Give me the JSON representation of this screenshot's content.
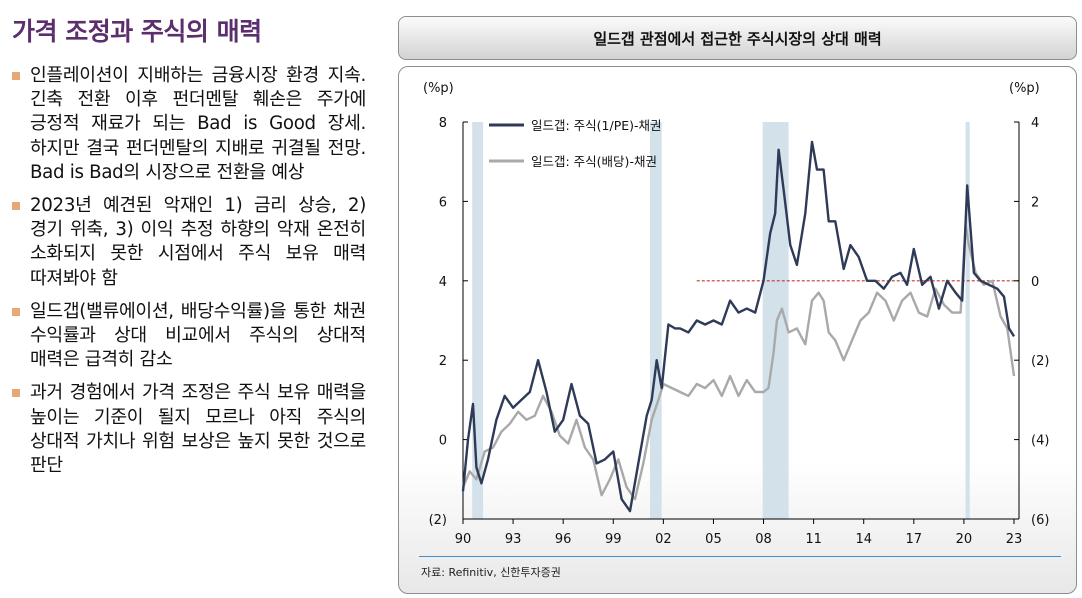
{
  "page": {
    "title": "가격 조정과 주식의 매력",
    "bullets": [
      "인플레이션이 지배하는 금융시장 환경 지속. 긴축 전환 이후 펀더멘탈 훼손은 주가에 긍정적 재료가 되는 Bad is Good 장세. 하지만 결국 펀더멘탈의 지배로 귀결될 전망. Bad is Bad의 시장으로 전환을 예상",
      "2023년 예견된 악재인 1) 금리 상승, 2) 경기 위축, 3) 이익 추정 하향의 악재 온전히 소화되지 못한 시점에서 주식 보유 매력 따져봐야 함",
      "일드갭(밸류에이션, 배당수익률)을 통한 채권 수익률과 상대 비교에서 주식의 상대적 매력은 급격히 감소",
      "과거 경험에서 가격 조정은 주식 보유 매력을 높이는 기준이 될지 모르나 아직 주식의 상대적 가치나 위험 보상은 높지 못한 것으로 판단"
    ],
    "source": "자료: Refinitiv, 신한투자증권"
  },
  "colors": {
    "title": "#5b2e6e",
    "bullet": "#e9a774",
    "series_pe": "#2e3a57",
    "series_div": "#a9a9a9",
    "recession": "#d3e1ea",
    "reference_line": "#c0392b"
  },
  "chart_data": {
    "type": "line",
    "title": "일드갭 관점에서 접근한 주식시장의 상대 매력",
    "y_left_unit": "(%p)",
    "y_right_unit": "(%p)",
    "xlim": [
      1990,
      2023.3
    ],
    "ylim_left": [
      -2,
      8
    ],
    "ylim_right": [
      -6,
      4
    ],
    "x_ticks": [
      1990,
      1993,
      1996,
      1999,
      2002,
      2005,
      2008,
      2011,
      2014,
      2017,
      2020,
      2023
    ],
    "x_tick_labels": [
      "90",
      "93",
      "96",
      "99",
      "02",
      "05",
      "08",
      "11",
      "14",
      "17",
      "20",
      "23"
    ],
    "y_left_ticks": [
      -2,
      0,
      2,
      4,
      6,
      8
    ],
    "y_left_tick_labels": [
      "(2)",
      "0",
      "2",
      "4",
      "6",
      "8"
    ],
    "y_right_ticks": [
      -6,
      -4,
      -2,
      0,
      2,
      4
    ],
    "y_right_tick_labels": [
      "(6)",
      "(4)",
      "(2)",
      "0",
      "2",
      "4"
    ],
    "recessions": [
      [
        1990.55,
        1991.2
      ],
      [
        2001.2,
        2001.9
      ],
      [
        2007.95,
        2009.5
      ],
      [
        2020.1,
        2020.35
      ]
    ],
    "reference_line": {
      "axis": "right",
      "y": 0,
      "x_start": 2004.0
    },
    "legend_position": "top-left",
    "grid": false,
    "series": [
      {
        "name": "일드갭: 주식(1/PE)-채권",
        "axis": "left",
        "x": [
          1990.0,
          1990.3,
          1990.6,
          1990.8,
          1991.1,
          1991.5,
          1992.0,
          1992.5,
          1993.0,
          1993.5,
          1994.0,
          1994.5,
          1995.0,
          1995.5,
          1996.0,
          1996.5,
          1997.0,
          1997.5,
          1998.0,
          1998.5,
          1999.0,
          1999.5,
          2000.0,
          2000.5,
          2001.0,
          2001.3,
          2001.6,
          2001.9,
          2002.3,
          2002.7,
          2003.0,
          2003.5,
          2004.0,
          2004.5,
          2005.0,
          2005.5,
          2006.0,
          2006.5,
          2007.0,
          2007.5,
          2008.0,
          2008.4,
          2008.7,
          2008.9,
          2009.2,
          2009.6,
          2010.0,
          2010.5,
          2010.9,
          2011.2,
          2011.6,
          2011.9,
          2012.3,
          2012.8,
          2013.2,
          2013.7,
          2014.2,
          2014.7,
          2015.2,
          2015.7,
          2016.2,
          2016.6,
          2017.0,
          2017.5,
          2018.0,
          2018.5,
          2019.0,
          2019.5,
          2019.9,
          2020.2,
          2020.6,
          2021.0,
          2021.5,
          2022.0,
          2022.4,
          2022.7,
          2023.0
        ],
        "values": [
          -1.3,
          0.0,
          0.9,
          -0.7,
          -1.1,
          -0.5,
          0.5,
          1.1,
          0.8,
          1.0,
          1.2,
          2.0,
          1.2,
          0.2,
          0.5,
          1.4,
          0.6,
          0.4,
          -0.6,
          -0.5,
          -0.3,
          -1.5,
          -1.8,
          -0.6,
          0.6,
          1.0,
          2.0,
          1.3,
          2.9,
          2.8,
          2.8,
          2.7,
          3.0,
          2.9,
          3.0,
          2.9,
          3.5,
          3.2,
          3.3,
          3.2,
          4.0,
          5.2,
          5.7,
          7.3,
          6.3,
          4.9,
          4.4,
          5.7,
          7.5,
          6.8,
          6.8,
          5.5,
          5.5,
          4.3,
          4.9,
          4.6,
          4.0,
          4.0,
          3.8,
          4.1,
          4.2,
          3.9,
          4.8,
          3.9,
          4.1,
          3.3,
          4.0,
          3.7,
          3.5,
          6.4,
          4.2,
          4.0,
          3.9,
          3.8,
          3.6,
          2.8,
          2.6
        ]
      },
      {
        "name": "일드갭: 주식(배당)-채권",
        "axis": "right",
        "x": [
          1990.0,
          1990.4,
          1990.8,
          1991.3,
          1991.8,
          1992.3,
          1992.8,
          1993.3,
          1993.8,
          1994.3,
          1994.8,
          1995.3,
          1995.8,
          1996.3,
          1996.8,
          1997.3,
          1997.8,
          1998.3,
          1998.8,
          1999.3,
          1999.8,
          2000.3,
          2000.8,
          2001.3,
          2001.7,
          2002.0,
          2002.5,
          2003.0,
          2003.5,
          2004.0,
          2004.5,
          2005.0,
          2005.5,
          2006.0,
          2006.5,
          2007.0,
          2007.5,
          2008.0,
          2008.3,
          2008.6,
          2008.8,
          2009.1,
          2009.5,
          2010.0,
          2010.5,
          2010.9,
          2011.3,
          2011.6,
          2011.9,
          2012.3,
          2012.8,
          2013.3,
          2013.8,
          2014.3,
          2014.8,
          2015.3,
          2015.8,
          2016.3,
          2016.8,
          2017.3,
          2017.8,
          2018.3,
          2018.8,
          2019.3,
          2019.8,
          2020.1,
          2020.3,
          2020.7,
          2021.2,
          2021.7,
          2022.2,
          2022.6,
          2023.0
        ],
        "values": [
          -5.2,
          -4.8,
          -5.0,
          -4.3,
          -4.2,
          -3.8,
          -3.6,
          -3.3,
          -3.5,
          -3.4,
          -2.9,
          -3.3,
          -3.9,
          -4.1,
          -3.5,
          -4.2,
          -4.5,
          -5.4,
          -5.0,
          -4.5,
          -5.2,
          -5.5,
          -4.6,
          -3.5,
          -3.0,
          -2.6,
          -2.7,
          -2.8,
          -2.9,
          -2.6,
          -2.7,
          -2.5,
          -2.9,
          -2.4,
          -2.9,
          -2.5,
          -2.8,
          -2.8,
          -2.7,
          -1.8,
          -1.0,
          -0.7,
          -1.3,
          -1.2,
          -1.6,
          -0.5,
          -0.3,
          -0.5,
          -1.3,
          -1.5,
          -2.0,
          -1.5,
          -1.0,
          -0.8,
          -0.3,
          -0.5,
          -1.0,
          -0.5,
          -0.3,
          -0.8,
          -0.9,
          -0.2,
          -0.6,
          -0.8,
          -0.8,
          1.4,
          0.9,
          0.2,
          -0.1,
          0.0,
          -0.9,
          -1.2,
          -2.4
        ]
      }
    ]
  }
}
